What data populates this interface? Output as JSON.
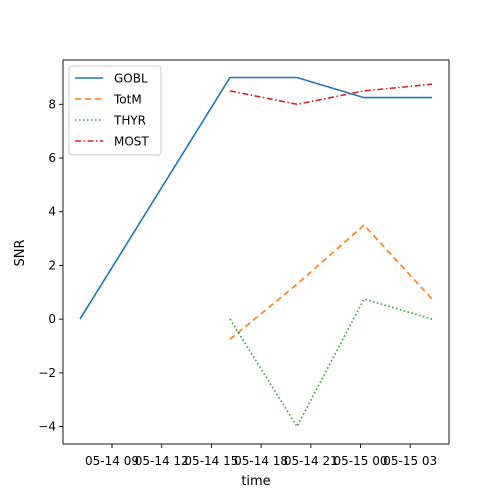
{
  "chart_data": {
    "type": "line",
    "title": "",
    "xlabel": "time",
    "ylabel": "SNR",
    "x": [
      "05-14 07",
      "05-14 12",
      "05-14 16",
      "05-14 20",
      "05-15 00",
      "05-15 04"
    ],
    "x_tick_labels": [
      "05-14 09",
      "05-14 12",
      "05-14 15",
      "05-14 18",
      "05-14 21",
      "05-15 00",
      "05-15 03"
    ],
    "y_ticks": [
      -4,
      -2,
      0,
      2,
      4,
      6,
      8
    ],
    "ylim": [
      -4.65,
      9.65
    ],
    "grid": false,
    "legend_position": "upper-left",
    "series": [
      {
        "name": "GOBL",
        "color": "#1f77b4",
        "dash": "solid",
        "values": [
          0,
          null,
          9.0,
          9.0,
          8.25,
          8.25
        ]
      },
      {
        "name": "TotM",
        "color": "#ff7f0e",
        "dash": "dashed",
        "values": [
          null,
          null,
          -0.75,
          1.3,
          3.5,
          0.75
        ]
      },
      {
        "name": "THYR",
        "color": "#2ca02c",
        "dash": "dotted",
        "values": [
          null,
          null,
          0,
          -4.0,
          0.75,
          0
        ]
      },
      {
        "name": "MOST",
        "color": "#d62728",
        "dash": "dashdot",
        "values": [
          null,
          null,
          8.5,
          8.0,
          8.5,
          8.75
        ]
      }
    ]
  }
}
